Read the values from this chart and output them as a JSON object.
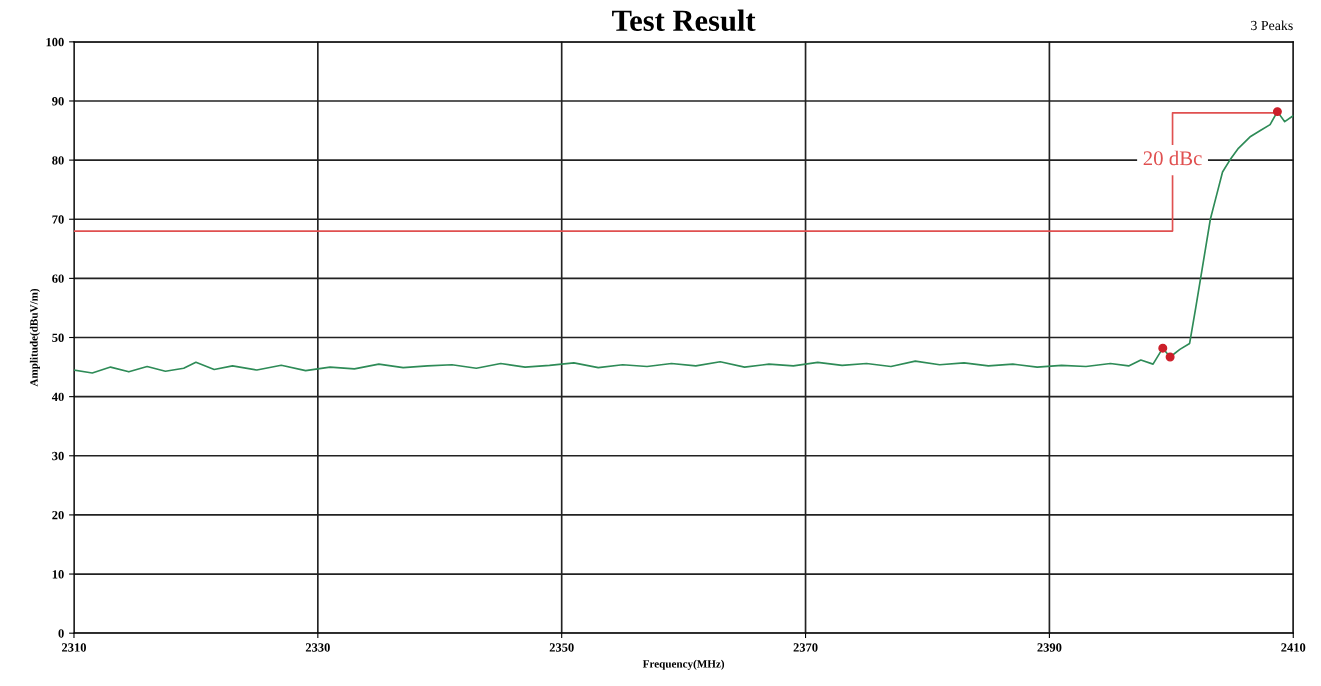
{
  "chart_data": {
    "type": "line",
    "title": "Test Result",
    "xlabel": "Frequency(MHz)",
    "ylabel": "Amplitude(dBuV/m)",
    "xlim": [
      2310,
      2410
    ],
    "xticks": [
      2310,
      2330,
      2350,
      2370,
      2390,
      2410
    ],
    "ylim": [
      0,
      100
    ],
    "yticks": [
      0,
      10,
      20,
      30,
      40,
      50,
      60,
      70,
      80,
      90,
      100
    ],
    "grid": true,
    "legend": false,
    "series": [
      {
        "color": "#2e8b57",
        "x": [
          2310,
          2311.5,
          2313,
          2314.5,
          2316,
          2317.5,
          2319,
          2320,
          2321.5,
          2323,
          2325,
          2327,
          2329,
          2331,
          2333,
          2335,
          2337,
          2339,
          2341,
          2343,
          2345,
          2347,
          2349,
          2351,
          2353,
          2355,
          2357,
          2359,
          2361,
          2363,
          2365,
          2367,
          2369,
          2371,
          2373,
          2375,
          2377,
          2379,
          2381,
          2383,
          2385,
          2387,
          2389,
          2391,
          2393,
          2395,
          2396.5,
          2397.5,
          2398.5,
          2399.3,
          2399.9,
          2400.7,
          2401.5,
          2402,
          2402.4,
          2402.8,
          2403.2,
          2403.7,
          2404.2,
          2404.8,
          2405.5,
          2406.5,
          2407.3,
          2408.1,
          2408.7,
          2409.3,
          2410
        ],
        "values": [
          44.5,
          44.0,
          45.0,
          44.2,
          45.1,
          44.3,
          44.8,
          45.8,
          44.6,
          45.2,
          44.5,
          45.3,
          44.4,
          45.0,
          44.7,
          45.5,
          44.9,
          45.2,
          45.4,
          44.8,
          45.6,
          45.0,
          45.3,
          45.7,
          44.9,
          45.4,
          45.1,
          45.6,
          45.2,
          45.9,
          45.0,
          45.5,
          45.2,
          45.8,
          45.3,
          45.6,
          45.1,
          46.0,
          45.4,
          45.7,
          45.2,
          45.5,
          45.0,
          45.3,
          45.1,
          45.6,
          45.2,
          46.2,
          45.5,
          48.2,
          46.7,
          48.0,
          49.0,
          55.0,
          60.0,
          65.0,
          70.0,
          74.0,
          78.0,
          80.0,
          82.0,
          84.0,
          85.0,
          86.0,
          88.2,
          86.5,
          87.5
        ]
      },
      {
        "type": "line",
        "color": "#e05050",
        "x": [
          2310,
          2400.1,
          2400.1,
          2408.7
        ],
        "values": [
          68,
          68,
          88,
          88
        ]
      },
      {
        "type": "scatter",
        "color": "#cc1f2a",
        "marker": "circle",
        "x": [
          2399.3,
          2399.9,
          2408.7
        ],
        "values": [
          48.2,
          46.7,
          88.2
        ]
      }
    ],
    "annotations": [
      {
        "text": "20 dBc",
        "x": 2400.1,
        "y": 80
      },
      "3 Peaks"
    ]
  }
}
